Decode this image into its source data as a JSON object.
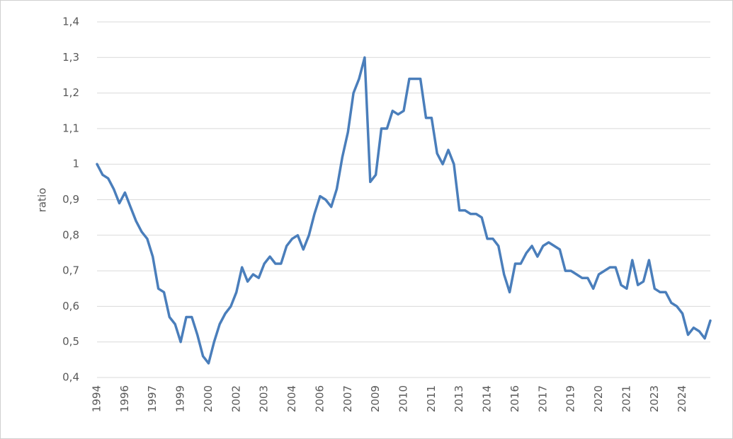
{
  "chart_data": {
    "type": "line",
    "y_label": "ratio",
    "categories": [
      "1994",
      null,
      null,
      null,
      null,
      "1996",
      null,
      null,
      null,
      null,
      "1997",
      null,
      null,
      null,
      null,
      "1999",
      null,
      null,
      null,
      null,
      "2000",
      null,
      null,
      null,
      null,
      "2002",
      null,
      null,
      null,
      null,
      "2003",
      null,
      null,
      null,
      null,
      "2004",
      null,
      null,
      null,
      null,
      "2006",
      null,
      null,
      null,
      null,
      "2007",
      null,
      null,
      null,
      null,
      "2009",
      null,
      null,
      null,
      null,
      "2010",
      null,
      null,
      null,
      null,
      "2011",
      null,
      null,
      null,
      null,
      "2013",
      null,
      null,
      null,
      null,
      "2014",
      null,
      null,
      null,
      null,
      "2016",
      null,
      null,
      null,
      null,
      "2017",
      null,
      null,
      null,
      null,
      "2019",
      null,
      null,
      null,
      null,
      "2020",
      null,
      null,
      null,
      null,
      "2021",
      null,
      null,
      null,
      null,
      "2023",
      null,
      null,
      null,
      null,
      "2024",
      null,
      null,
      null,
      null,
      null
    ],
    "values": [
      1.0,
      0.97,
      0.96,
      0.93,
      0.89,
      0.92,
      0.88,
      0.84,
      0.81,
      0.79,
      0.74,
      0.65,
      0.64,
      0.57,
      0.55,
      0.5,
      0.57,
      0.57,
      0.52,
      0.46,
      0.44,
      0.5,
      0.55,
      0.58,
      0.6,
      0.64,
      0.71,
      0.67,
      0.69,
      0.68,
      0.72,
      0.74,
      0.72,
      0.72,
      0.77,
      0.79,
      0.8,
      0.76,
      0.8,
      0.86,
      0.91,
      0.9,
      0.88,
      0.93,
      1.02,
      1.09,
      1.2,
      1.24,
      1.3,
      0.95,
      0.97,
      1.1,
      1.1,
      1.15,
      1.14,
      1.15,
      1.24,
      1.24,
      1.24,
      1.13,
      1.13,
      1.03,
      1.0,
      1.04,
      1.0,
      0.87,
      0.87,
      0.86,
      0.86,
      0.85,
      0.79,
      0.79,
      0.77,
      0.69,
      0.64,
      0.72,
      0.72,
      0.75,
      0.77,
      0.74,
      0.77,
      0.78,
      0.77,
      0.76,
      0.7,
      0.7,
      0.69,
      0.68,
      0.68,
      0.65,
      0.69,
      0.7,
      0.71,
      0.71,
      0.66,
      0.65,
      0.73,
      0.66,
      0.67,
      0.73,
      0.65,
      0.64,
      0.64,
      0.61,
      0.6,
      0.58,
      0.52,
      0.54,
      0.53,
      0.51,
      0.56
    ],
    "color": "#4a7ebb",
    "ylim": [
      0.4,
      1.4
    ],
    "yticks": [
      {
        "value": 0.4,
        "label": "0,4"
      },
      {
        "value": 0.5,
        "label": "0,5"
      },
      {
        "value": 0.6,
        "label": "0,6"
      },
      {
        "value": 0.7,
        "label": "0,7"
      },
      {
        "value": 0.8,
        "label": "0,8"
      },
      {
        "value": 0.9,
        "label": "0,9"
      },
      1,
      {
        "value": 1.1,
        "label": "1,1"
      },
      {
        "value": 1.2,
        "label": "1,2"
      },
      {
        "value": 1.3,
        "label": "1,3"
      },
      {
        "value": 1.4,
        "label": "1,4"
      }
    ],
    "grid": true
  }
}
